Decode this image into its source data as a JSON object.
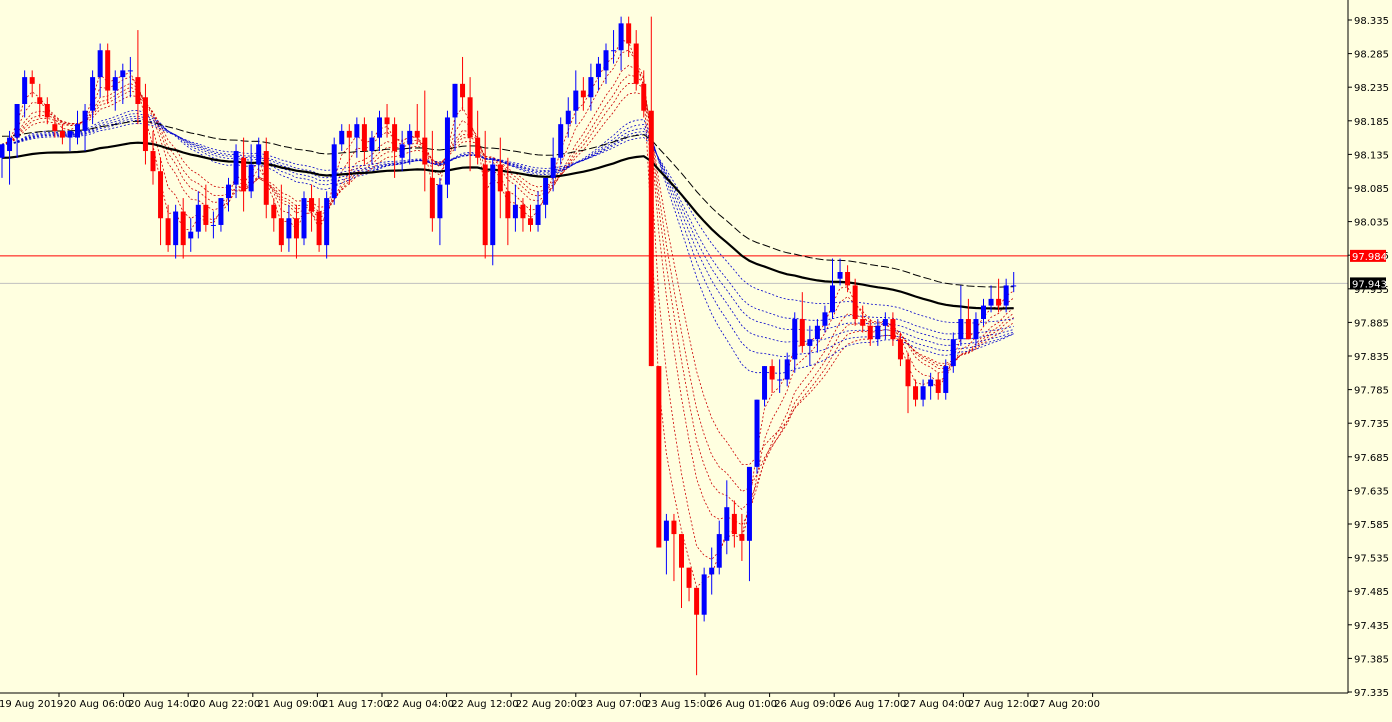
{
  "chart_data": {
    "type": "candlestick",
    "x_labels": [
      "19 Aug 2019",
      "20 Aug 06:00",
      "20 Aug 14:00",
      "20 Aug 22:00",
      "21 Aug 09:00",
      "21 Aug 17:00",
      "22 Aug 04:00",
      "22 Aug 12:00",
      "22 Aug 20:00",
      "23 Aug 07:00",
      "23 Aug 15:00",
      "26 Aug 01:00",
      "26 Aug 09:00",
      "26 Aug 17:00",
      "27 Aug 04:00",
      "27 Aug 12:00",
      "27 Aug 20:00"
    ],
    "y_ticks": [
      "98.335",
      "98.285",
      "98.235",
      "98.185",
      "98.135",
      "98.085",
      "98.035",
      "97.985",
      "97.935",
      "97.885",
      "97.835",
      "97.785",
      "97.735",
      "97.685",
      "97.635",
      "97.585",
      "97.535",
      "97.485",
      "97.435",
      "97.385",
      "97.335"
    ],
    "ylim": [
      97.325,
      98.345
    ],
    "price_lines": [
      {
        "label": "97.984",
        "value": 97.984,
        "color": "#FF0000",
        "box_text_color": "#FFFFFF"
      },
      {
        "label": "97.943",
        "value": 97.943,
        "color": "#C0C0C0",
        "box_text_color": "#FFFFFF"
      }
    ],
    "candle_colors": {
      "up": "#0000FF",
      "down": "#FF0000"
    },
    "ma_colors": {
      "fast": "#CC0000",
      "mid": "#0000CC",
      "slow": "#000000"
    },
    "candles": [
      [
        98.13,
        98.15,
        98.1,
        98.15
      ],
      [
        98.14,
        98.17,
        98.09,
        98.16
      ],
      [
        98.16,
        98.21,
        98.13,
        98.21
      ],
      [
        98.21,
        98.26,
        98.19,
        98.25
      ],
      [
        98.25,
        98.26,
        98.22,
        98.24
      ],
      [
        98.22,
        98.24,
        98.19,
        98.21
      ],
      [
        98.21,
        98.22,
        98.18,
        98.19
      ],
      [
        98.18,
        98.19,
        98.16,
        98.17
      ],
      [
        98.17,
        98.18,
        98.15,
        98.16
      ],
      [
        98.16,
        98.17,
        98.14,
        98.17
      ],
      [
        98.16,
        98.2,
        98.15,
        98.18
      ],
      [
        98.17,
        98.21,
        98.14,
        98.2
      ],
      [
        98.2,
        98.26,
        98.18,
        98.25
      ],
      [
        98.25,
        98.3,
        98.22,
        98.29
      ],
      [
        98.29,
        98.3,
        98.21,
        98.23
      ],
      [
        98.23,
        98.26,
        98.2,
        98.25
      ],
      [
        98.25,
        98.27,
        98.21,
        98.26
      ],
      [
        98.26,
        98.28,
        98.22,
        98.26
      ],
      [
        98.25,
        98.32,
        98.18,
        98.21
      ],
      [
        98.22,
        98.24,
        98.12,
        98.14
      ],
      [
        98.14,
        98.17,
        98.09,
        98.11
      ],
      [
        98.11,
        98.13,
        98.0,
        98.04
      ],
      [
        98.04,
        98.06,
        97.99,
        98.0
      ],
      [
        98.0,
        98.06,
        97.98,
        98.05
      ],
      [
        98.05,
        98.07,
        97.98,
        98.0
      ],
      [
        98.01,
        98.04,
        97.99,
        98.02
      ],
      [
        98.02,
        98.08,
        98.01,
        98.06
      ],
      [
        98.06,
        98.09,
        98.02,
        98.03
      ],
      [
        98.03,
        98.05,
        98.01,
        98.03
      ],
      [
        98.03,
        98.07,
        98.02,
        98.07
      ],
      [
        98.07,
        98.1,
        98.05,
        98.09
      ],
      [
        98.09,
        98.15,
        98.07,
        98.14
      ],
      [
        98.13,
        98.16,
        98.05,
        98.08
      ],
      [
        98.08,
        98.15,
        98.07,
        98.12
      ],
      [
        98.12,
        98.16,
        98.1,
        98.15
      ],
      [
        98.14,
        98.16,
        98.04,
        98.06
      ],
      [
        98.06,
        98.07,
        98.02,
        98.04
      ],
      [
        98.04,
        98.09,
        97.99,
        98.0
      ],
      [
        98.01,
        98.06,
        97.99,
        98.04
      ],
      [
        98.04,
        98.06,
        97.98,
        98.01
      ],
      [
        98.01,
        98.08,
        98.0,
        98.07
      ],
      [
        98.07,
        98.09,
        98.02,
        98.05
      ],
      [
        98.05,
        98.07,
        97.99,
        98.0
      ],
      [
        98.0,
        98.08,
        97.98,
        98.07
      ],
      [
        98.07,
        98.16,
        98.06,
        98.15
      ],
      [
        98.15,
        98.18,
        98.14,
        98.17
      ],
      [
        98.17,
        98.18,
        98.09,
        98.16
      ],
      [
        98.16,
        98.19,
        98.13,
        98.18
      ],
      [
        98.18,
        98.19,
        98.12,
        98.14
      ],
      [
        98.14,
        98.17,
        98.12,
        98.16
      ],
      [
        98.16,
        98.2,
        98.14,
        98.19
      ],
      [
        98.19,
        98.21,
        98.16,
        98.18
      ],
      [
        98.18,
        98.19,
        98.1,
        98.14
      ],
      [
        98.13,
        98.17,
        98.11,
        98.15
      ],
      [
        98.15,
        98.18,
        98.12,
        98.17
      ],
      [
        98.17,
        98.21,
        98.15,
        98.16
      ],
      [
        98.16,
        98.23,
        98.08,
        98.12
      ],
      [
        98.1,
        98.17,
        98.02,
        98.04
      ],
      [
        98.04,
        98.1,
        98.0,
        98.09
      ],
      [
        98.09,
        98.2,
        98.07,
        98.19
      ],
      [
        98.19,
        98.24,
        98.14,
        98.24
      ],
      [
        98.24,
        98.28,
        98.2,
        98.22
      ],
      [
        98.22,
        98.25,
        98.11,
        98.16
      ],
      [
        98.16,
        98.2,
        98.12,
        98.13
      ],
      [
        98.12,
        98.17,
        97.98,
        98.0
      ],
      [
        98.0,
        98.13,
        97.97,
        98.12
      ],
      [
        98.12,
        98.16,
        98.04,
        98.08
      ],
      [
        98.08,
        98.13,
        98.0,
        98.04
      ],
      [
        98.04,
        98.09,
        98.02,
        98.06
      ],
      [
        98.06,
        98.07,
        98.02,
        98.04
      ],
      [
        98.04,
        98.06,
        98.02,
        98.03
      ],
      [
        98.03,
        98.08,
        98.02,
        98.06
      ],
      [
        98.06,
        98.1,
        98.04,
        98.1
      ],
      [
        98.1,
        98.16,
        98.08,
        98.13
      ],
      [
        98.13,
        98.19,
        98.12,
        98.18
      ],
      [
        98.18,
        98.22,
        98.16,
        98.2
      ],
      [
        98.2,
        98.26,
        98.18,
        98.23
      ],
      [
        98.23,
        98.25,
        98.2,
        98.22
      ],
      [
        98.22,
        98.27,
        98.2,
        98.25
      ],
      [
        98.25,
        98.28,
        98.23,
        98.27
      ],
      [
        98.26,
        98.3,
        98.24,
        98.29
      ],
      [
        98.29,
        98.32,
        98.27,
        98.29
      ],
      [
        98.29,
        98.34,
        98.26,
        98.33
      ],
      [
        98.33,
        98.34,
        98.28,
        98.3
      ],
      [
        98.3,
        98.32,
        98.23,
        98.24
      ],
      [
        98.24,
        98.26,
        98.19,
        98.2
      ],
      [
        98.2,
        98.34,
        97.82,
        97.82
      ],
      [
        97.82,
        97.82,
        97.55,
        97.55
      ],
      [
        97.56,
        97.6,
        97.51,
        97.59
      ],
      [
        97.59,
        97.6,
        97.5,
        97.57
      ],
      [
        97.57,
        97.57,
        97.46,
        97.52
      ],
      [
        97.52,
        97.52,
        97.47,
        97.49
      ],
      [
        97.49,
        97.49,
        97.36,
        97.45
      ],
      [
        97.45,
        97.52,
        97.44,
        97.51
      ],
      [
        97.51,
        97.55,
        97.48,
        97.52
      ],
      [
        97.52,
        97.59,
        97.51,
        97.57
      ],
      [
        97.56,
        97.65,
        97.54,
        97.61
      ],
      [
        97.6,
        97.62,
        97.55,
        97.57
      ],
      [
        97.57,
        97.6,
        97.53,
        97.56
      ],
      [
        97.56,
        97.66,
        97.5,
        97.67
      ],
      [
        97.67,
        97.77,
        97.66,
        97.77
      ],
      [
        97.77,
        97.82,
        97.76,
        97.82
      ],
      [
        97.82,
        97.83,
        97.78,
        97.8
      ],
      [
        97.8,
        97.83,
        97.78,
        97.8
      ],
      [
        97.8,
        97.84,
        97.79,
        97.83
      ],
      [
        97.83,
        97.9,
        97.81,
        97.89
      ],
      [
        97.89,
        97.93,
        97.84,
        97.85
      ],
      [
        97.85,
        97.88,
        97.82,
        97.86
      ],
      [
        97.86,
        97.89,
        97.84,
        97.88
      ],
      [
        97.88,
        97.91,
        97.87,
        97.9
      ],
      [
        97.9,
        97.98,
        97.89,
        97.94
      ],
      [
        97.95,
        97.98,
        97.94,
        97.96
      ],
      [
        97.96,
        97.97,
        97.93,
        97.94
      ],
      [
        97.94,
        97.95,
        97.88,
        97.89
      ],
      [
        97.89,
        97.91,
        97.87,
        97.88
      ],
      [
        97.88,
        97.89,
        97.85,
        97.86
      ],
      [
        97.86,
        97.89,
        97.85,
        97.88
      ],
      [
        97.88,
        97.9,
        97.86,
        97.89
      ],
      [
        97.89,
        97.9,
        97.85,
        97.86
      ],
      [
        97.86,
        97.87,
        97.82,
        97.83
      ],
      [
        97.83,
        97.84,
        97.75,
        97.79
      ],
      [
        97.79,
        97.8,
        97.76,
        97.77
      ],
      [
        97.77,
        97.8,
        97.76,
        97.79
      ],
      [
        97.79,
        97.81,
        97.77,
        97.8
      ],
      [
        97.8,
        97.81,
        97.77,
        97.78
      ],
      [
        97.78,
        97.83,
        97.77,
        97.82
      ],
      [
        97.82,
        97.87,
        97.81,
        97.86
      ],
      [
        97.86,
        97.94,
        97.85,
        97.89
      ],
      [
        97.89,
        97.92,
        97.86,
        97.86
      ],
      [
        97.86,
        97.9,
        97.85,
        97.89
      ],
      [
        97.89,
        97.92,
        97.88,
        97.91
      ],
      [
        97.91,
        97.94,
        97.9,
        97.92
      ],
      [
        97.92,
        97.95,
        97.9,
        97.91
      ],
      [
        97.91,
        97.95,
        97.9,
        97.94
      ],
      [
        97.94,
        97.96,
        97.93,
        97.94
      ]
    ]
  }
}
